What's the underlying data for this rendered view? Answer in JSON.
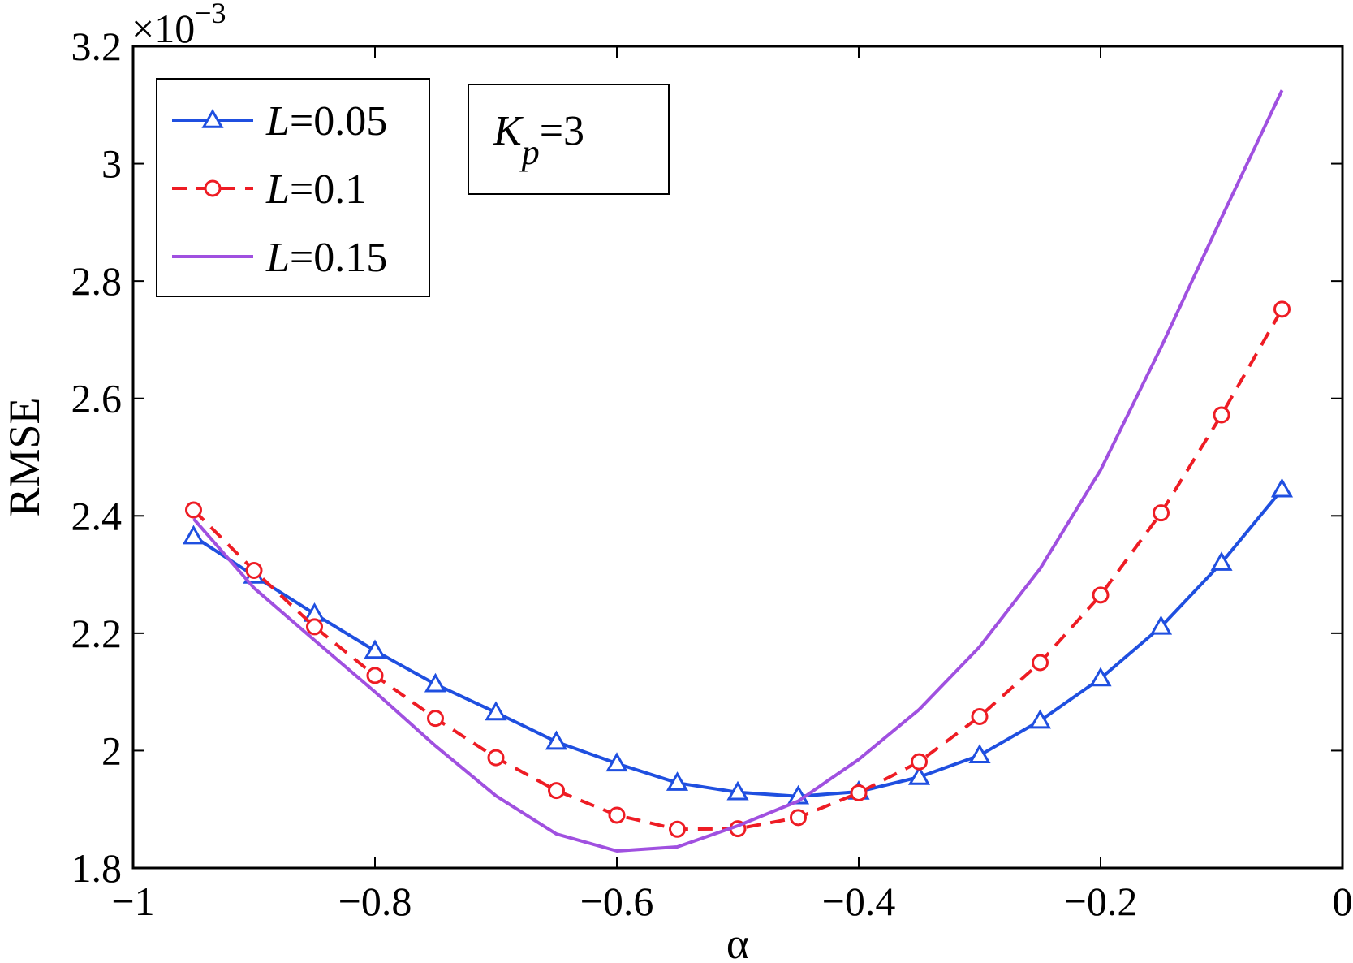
{
  "chart_data": {
    "type": "line",
    "title": "",
    "xlabel": "α",
    "ylabel": "RMSE",
    "y_multiplier_label": {
      "base": "×10",
      "exponent": "−3"
    },
    "xlim": [
      -1,
      0
    ],
    "ylim": [
      1.8,
      3.2
    ],
    "x_ticks": [
      -1,
      -0.8,
      -0.6,
      -0.4,
      -0.2,
      0
    ],
    "x_tick_labels": [
      "−1",
      "−0.8",
      "−0.6",
      "−0.4",
      "−0.2",
      "0"
    ],
    "y_ticks": [
      1.8,
      2,
      2.2,
      2.4,
      2.6,
      2.8,
      3,
      3.2
    ],
    "y_tick_labels": [
      "1.8",
      "2",
      "2.2",
      "2.4",
      "2.6",
      "2.8",
      "3",
      "3.2"
    ],
    "grid": false,
    "legend_position": "top-left",
    "x": [
      -0.95,
      -0.9,
      -0.85,
      -0.8,
      -0.75,
      -0.7,
      -0.65,
      -0.6,
      -0.55,
      -0.5,
      -0.45,
      -0.4,
      -0.35,
      -0.3,
      -0.25,
      -0.2,
      -0.15,
      -0.1,
      -0.05
    ],
    "series": [
      {
        "name_prefix": "L",
        "name_value": "=0.05",
        "color": "#1f4fe0",
        "line_style": "solid",
        "marker": "triangle",
        "values": [
          2.365,
          2.298,
          2.233,
          2.17,
          2.113,
          2.065,
          2.015,
          1.978,
          1.945,
          1.929,
          1.922,
          1.93,
          1.955,
          1.992,
          2.051,
          2.123,
          2.211,
          2.32,
          2.445
        ]
      },
      {
        "name_prefix": "L",
        "name_value": "=0.1",
        "color": "#ee1c24",
        "line_style": "dashed",
        "marker": "circle",
        "values": [
          2.41,
          2.307,
          2.211,
          2.128,
          2.055,
          1.988,
          1.932,
          1.89,
          1.866,
          1.867,
          1.886,
          1.928,
          1.981,
          2.058,
          2.15,
          2.265,
          2.405,
          2.572,
          2.752
        ]
      },
      {
        "name_prefix": "L",
        "name_value": "=0.15",
        "color": "#a050e0",
        "line_style": "solid",
        "marker": "none",
        "values": [
          2.395,
          2.277,
          2.188,
          2.1,
          2.008,
          1.923,
          1.858,
          1.829,
          1.836,
          1.872,
          1.914,
          1.985,
          2.07,
          2.177,
          2.31,
          2.478,
          2.687,
          2.908,
          3.125
        ]
      }
    ],
    "annotation": {
      "symbol": "K",
      "subscript": "p",
      "value": "=3"
    }
  }
}
